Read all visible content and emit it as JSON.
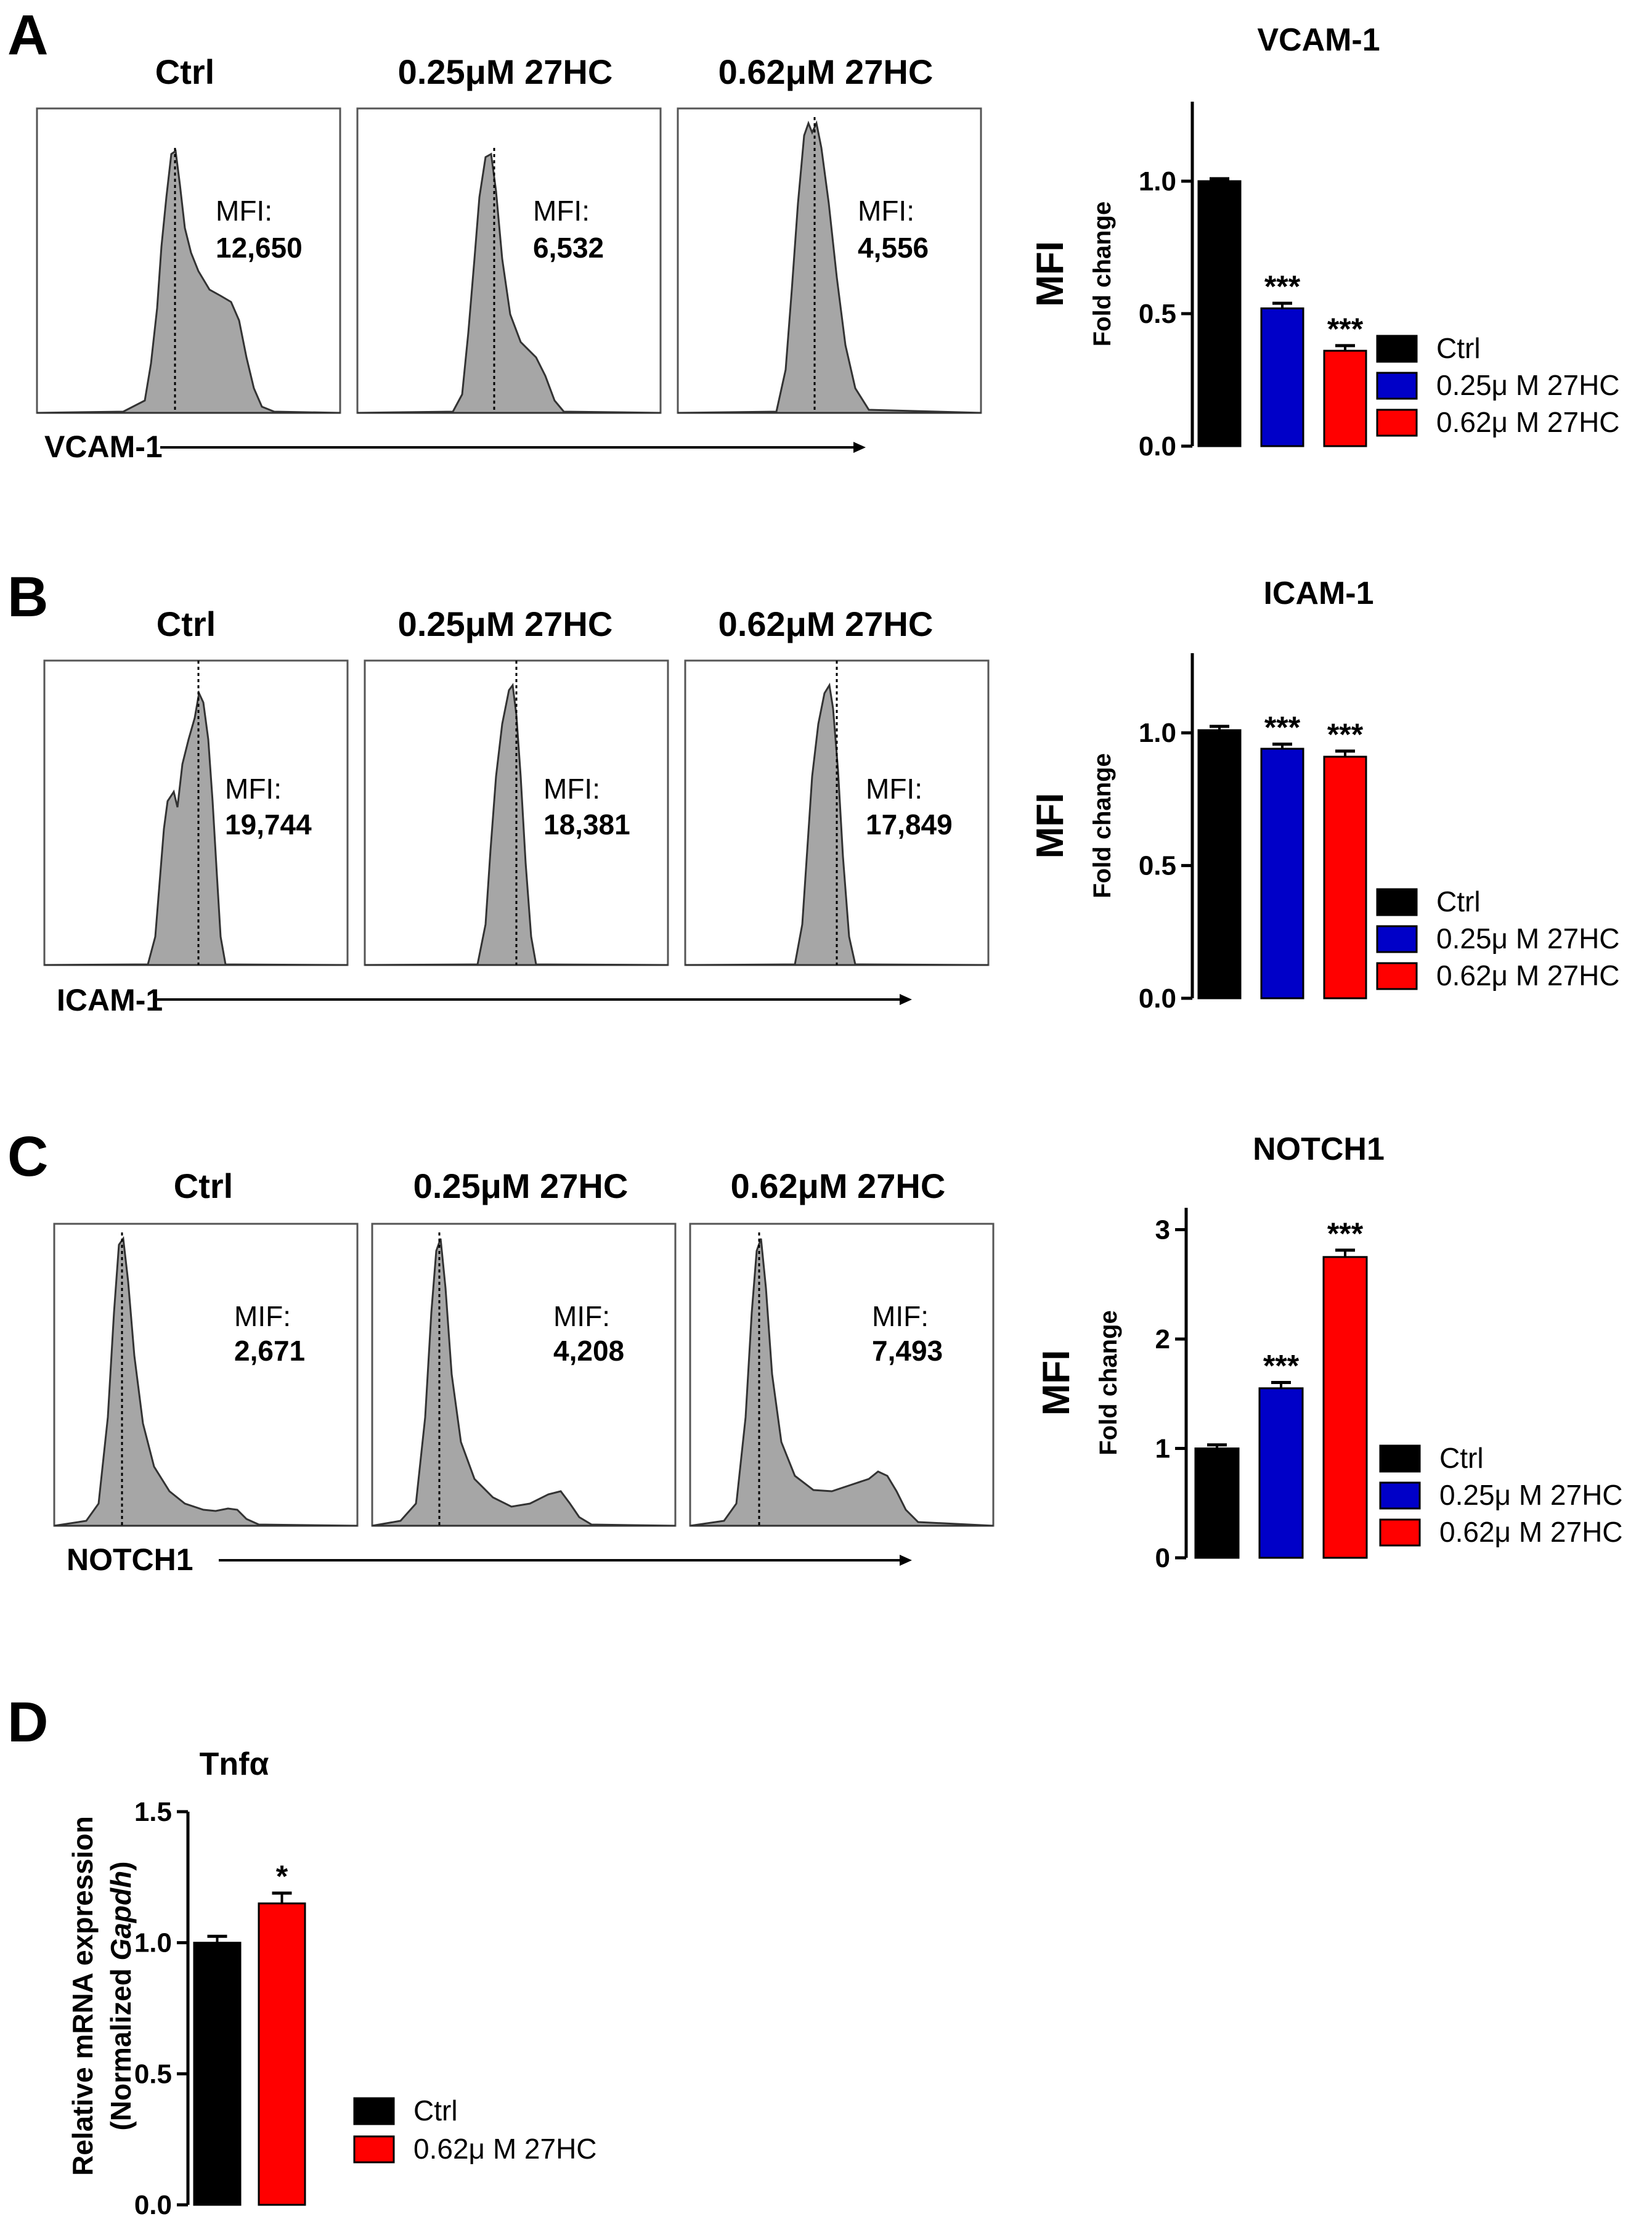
{
  "panels": [
    {
      "letter": "A",
      "marker": "VCAM-1",
      "histograms": [
        {
          "condition": "Ctrl",
          "stat_label": "MFI:",
          "stat_value": "12,650"
        },
        {
          "condition": "0.25μM 27HC",
          "stat_label": "MFI:",
          "stat_value": "6,532"
        },
        {
          "condition": "0.62μM 27HC",
          "stat_label": "MFI:",
          "stat_value": "4,556"
        }
      ]
    },
    {
      "letter": "B",
      "marker": "ICAM-1",
      "histograms": [
        {
          "condition": "Ctrl",
          "stat_label": "MFI:",
          "stat_value": "19,744"
        },
        {
          "condition": "0.25μM 27HC",
          "stat_label": "MFI:",
          "stat_value": "18,381"
        },
        {
          "condition": "0.62μM 27HC",
          "stat_label": "MFI:",
          "stat_value": "17,849"
        }
      ]
    },
    {
      "letter": "C",
      "marker": "NOTCH1",
      "histograms": [
        {
          "condition": "Ctrl",
          "stat_label": "MIF:",
          "stat_value": "2,671"
        },
        {
          "condition": "0.25μM 27HC",
          "stat_label": "MIF:",
          "stat_value": "4,208"
        },
        {
          "condition": "0.62μM 27HC",
          "stat_label": "MIF:",
          "stat_value": "7,493"
        }
      ]
    },
    {
      "letter": "D"
    }
  ],
  "colors": {
    "ctrl": "#000000",
    "low": "#0000c8",
    "high": "#ff0000",
    "histogram_fill": "#a6a6a6"
  },
  "chart_data": [
    {
      "type": "bar",
      "title": "VCAM-1",
      "ylabel": "MFI",
      "ylabel_sub": "Fold change",
      "categories": [
        "Ctrl",
        "0.25μ M 27HC",
        "0.62μ M 27HC"
      ],
      "values": [
        1.0,
        0.52,
        0.36
      ],
      "errors": [
        0.0,
        0.01,
        0.01
      ],
      "significance": [
        "",
        "***",
        "***"
      ],
      "ylim": [
        0,
        1.3
      ],
      "yticks": [
        "0.0",
        "0.5",
        "1.0"
      ],
      "ytick_values": [
        0,
        0.5,
        1.0
      ],
      "legend": [
        "Ctrl",
        "0.25μ M 27HC",
        "0.62μ M 27HC"
      ]
    },
    {
      "type": "bar",
      "title": "ICAM-1",
      "ylabel": "MFI",
      "ylabel_sub": "Fold change",
      "categories": [
        "Ctrl",
        "0.25μ M 27HC",
        "0.62μ M 27HC"
      ],
      "values": [
        1.01,
        0.94,
        0.91
      ],
      "errors": [
        0.005,
        0.008,
        0.012
      ],
      "significance": [
        "",
        "***",
        "***"
      ],
      "ylim": [
        0,
        1.3
      ],
      "yticks": [
        "0.0",
        "0.5",
        "1.0"
      ],
      "ytick_values": [
        0,
        0.5,
        1.0
      ],
      "legend": [
        "Ctrl",
        "0.25μ M 27HC",
        "0.62μ M 27HC"
      ]
    },
    {
      "type": "bar",
      "title": "NOTCH1",
      "ylabel": "MFI",
      "ylabel_sub": "Fold change",
      "categories": [
        "Ctrl",
        "0.25μ M 27HC",
        "0.62μ M 27HC"
      ],
      "values": [
        1.0,
        1.55,
        2.75
      ],
      "errors": [
        0.01,
        0.03,
        0.04
      ],
      "significance": [
        "",
        "***",
        "***"
      ],
      "ylim": [
        0,
        3.2
      ],
      "yticks": [
        "0",
        "1",
        "2",
        "3"
      ],
      "ytick_values": [
        0,
        1,
        2,
        3
      ],
      "legend": [
        "Ctrl",
        "0.25μ M 27HC",
        "0.62μ M 27HC"
      ]
    },
    {
      "type": "bar",
      "title": "Tnfα",
      "ylabel": "Relative mRNA expression",
      "ylabel_sub_prefix": "(Normalized ",
      "ylabel_sub_italic": "Gapdh",
      "ylabel_sub_suffix": ")",
      "categories": [
        "Ctrl",
        "0.62μ M 27HC"
      ],
      "values": [
        1.0,
        1.15
      ],
      "errors": [
        0.015,
        0.03
      ],
      "significance": [
        "",
        "*"
      ],
      "ylim": [
        0,
        1.5
      ],
      "yticks": [
        "0.0",
        "0.5",
        "1.0",
        "1.5"
      ],
      "ytick_values": [
        0,
        0.5,
        1.0,
        1.5
      ],
      "legend": [
        "Ctrl",
        "0.62μ M 27HC"
      ]
    }
  ]
}
